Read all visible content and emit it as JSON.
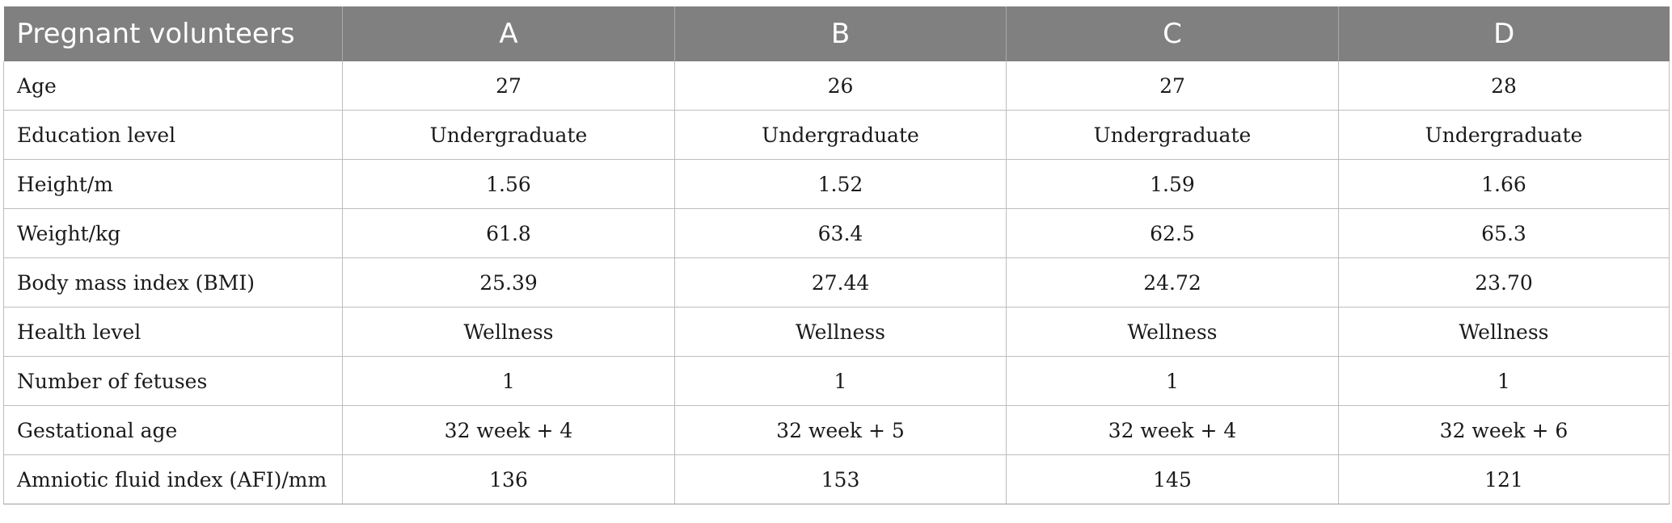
{
  "table": {
    "headers": [
      "Pregnant volunteers",
      "A",
      "B",
      "C",
      "D"
    ],
    "rows": [
      [
        "Age",
        "27",
        "26",
        "27",
        "28"
      ],
      [
        "Education level",
        "Undergraduate",
        "Undergraduate",
        "Undergraduate",
        "Undergraduate"
      ],
      [
        "Height/m",
        "1.56",
        "1.52",
        "1.59",
        "1.66"
      ],
      [
        "Weight/kg",
        "61.8",
        "63.4",
        "62.5",
        "65.3"
      ],
      [
        "Body mass index (BMI)",
        "25.39",
        "27.44",
        "24.72",
        "23.70"
      ],
      [
        "Health level",
        "Wellness",
        "Wellness",
        "Wellness",
        "Wellness"
      ],
      [
        "Number of fetuses",
        "1",
        "1",
        "1",
        "1"
      ],
      [
        "Gestational age",
        "32 week + 4",
        "32 week + 5",
        "32 week + 4",
        "32 week + 6"
      ],
      [
        "Amniotic fluid index (AFI)/mm",
        "136",
        "153",
        "145",
        "121"
      ]
    ]
  },
  "colors": {
    "header_bg": "#808080",
    "header_text": "#ffffff",
    "grid": "#bdbdbd"
  }
}
